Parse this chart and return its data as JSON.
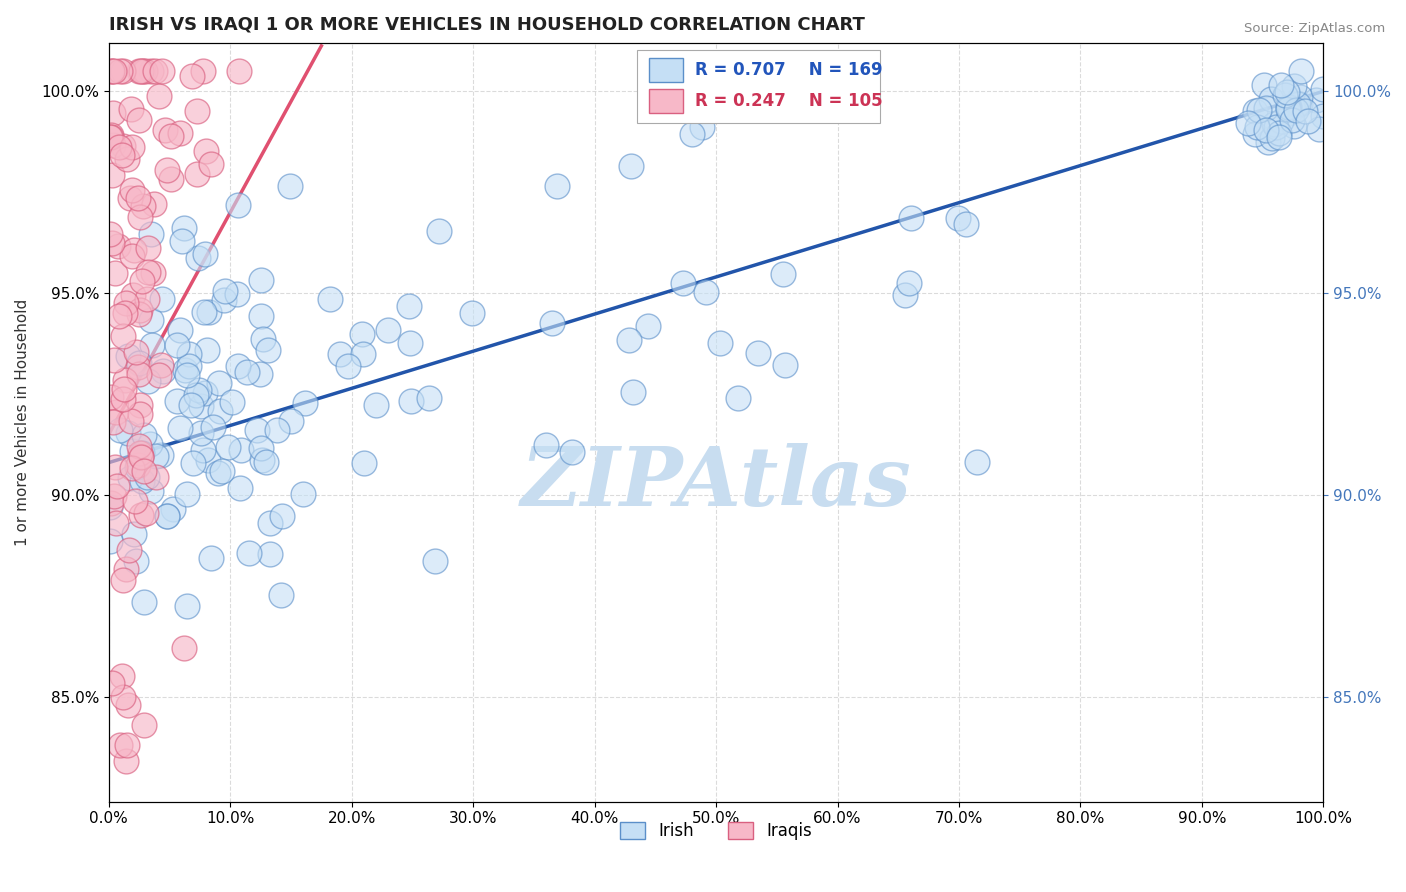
{
  "title": "IRISH VS IRAQI 1 OR MORE VEHICLES IN HOUSEHOLD CORRELATION CHART",
  "source_text": "Source: ZipAtlas.com",
  "ylabel": "1 or more Vehicles in Household",
  "ytick_labels": [
    "85.0%",
    "90.0%",
    "95.0%",
    "100.0%"
  ],
  "ytick_values": [
    0.85,
    0.9,
    0.95,
    1.0
  ],
  "xmin": 0.0,
  "xmax": 1.0,
  "ymin": 0.824,
  "ymax": 1.012,
  "irish_color": "#c5dff5",
  "irish_edge_color": "#5b8fc9",
  "iraqi_color": "#f7b8c8",
  "iraqi_edge_color": "#d96080",
  "irish_line_color": "#2255aa",
  "iraqi_line_color": "#e05070",
  "watermark": "ZIPAtlas",
  "watermark_color": "#c8ddf0",
  "title_fontsize": 13,
  "tick_fontsize": 11,
  "right_tick_color": "#4477bb"
}
